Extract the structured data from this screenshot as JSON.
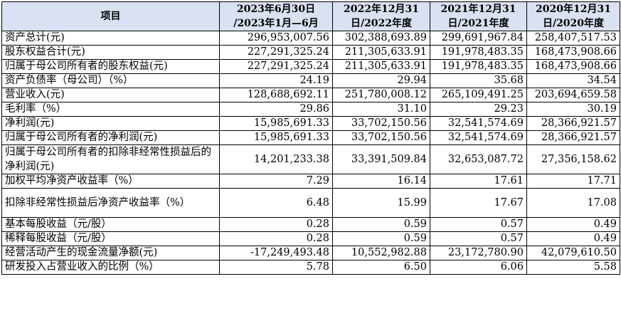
{
  "table": {
    "headers": [
      {
        "lines": [
          "项目"
        ]
      },
      {
        "lines": [
          "2023年6月30日",
          "/2023年1月—6月"
        ]
      },
      {
        "lines": [
          "2022年12月31",
          "日/2022年度"
        ]
      },
      {
        "lines": [
          "2021年12月31",
          "日/2021年度"
        ]
      },
      {
        "lines": [
          "2020年12月31",
          "日/2020年度"
        ]
      }
    ],
    "rows": [
      {
        "label": "资产总计(元)",
        "values": [
          "296,953,007.56",
          "302,388,693.89",
          "299,691,967.84",
          "258,407,517.53"
        ]
      },
      {
        "label": "股东权益合计(元)",
        "values": [
          "227,291,325.24",
          "211,305,633.91",
          "191,978,483.35",
          "168,473,908.66"
        ]
      },
      {
        "label": "归属于母公司所有者的股东权益(元)",
        "values": [
          "227,291,325.24",
          "211,305,633.91",
          "191,978,483.35",
          "168,473,908.66"
        ]
      },
      {
        "label": "资产负债率（母公司）（%）",
        "values": [
          "24.19",
          "29.94",
          "35.68",
          "34.54"
        ]
      },
      {
        "label": "营业收入(元)",
        "values": [
          "128,688,692.11",
          "251,780,008.12",
          "265,109,491.25",
          "203,694,659.58"
        ]
      },
      {
        "label": "毛利率（%）",
        "values": [
          "29.86",
          "31.10",
          "29.23",
          "30.19"
        ]
      },
      {
        "label": "净利润(元)",
        "values": [
          "15,985,691.33",
          "33,702,150.56",
          "32,541,574.69",
          "28,366,921.57"
        ]
      },
      {
        "label": "归属于母公司所有者的净利润(元)",
        "values": [
          "15,985,691.33",
          "33,702,150.56",
          "32,541,574.69",
          "28,366,921.57"
        ]
      },
      {
        "label": "归属于母公司所有者的扣除非经常性损益后的净利润(元)",
        "values": [
          "14,201,233.38",
          "33,391,509.84",
          "32,653,087.72",
          "27,356,158.62"
        ]
      },
      {
        "label": "加权平均净资产收益率（%）",
        "values": [
          "7.29",
          "16.14",
          "17.61",
          "17.71"
        ]
      },
      {
        "label": "扣除非经常性损益后净资产收益率（%）",
        "values": [
          "6.48",
          "15.99",
          "17.67",
          "17.08"
        ]
      },
      {
        "label": "基本每股收益（元/股）",
        "values": [
          "0.28",
          "0.59",
          "0.57",
          "0.49"
        ]
      },
      {
        "label": "稀释每股收益（元/股）",
        "values": [
          "0.28",
          "0.59",
          "0.57",
          "0.49"
        ]
      },
      {
        "label": "经营活动产生的现金流量净额(元)",
        "values": [
          "-17,249,493.48",
          "10,552,982.88",
          "23,172,780.90",
          "42,079,610.50"
        ]
      },
      {
        "label": "研发投入占营业收入的比例（%）",
        "values": [
          "5.78",
          "6.50",
          "6.06",
          "5.58"
        ]
      }
    ]
  }
}
